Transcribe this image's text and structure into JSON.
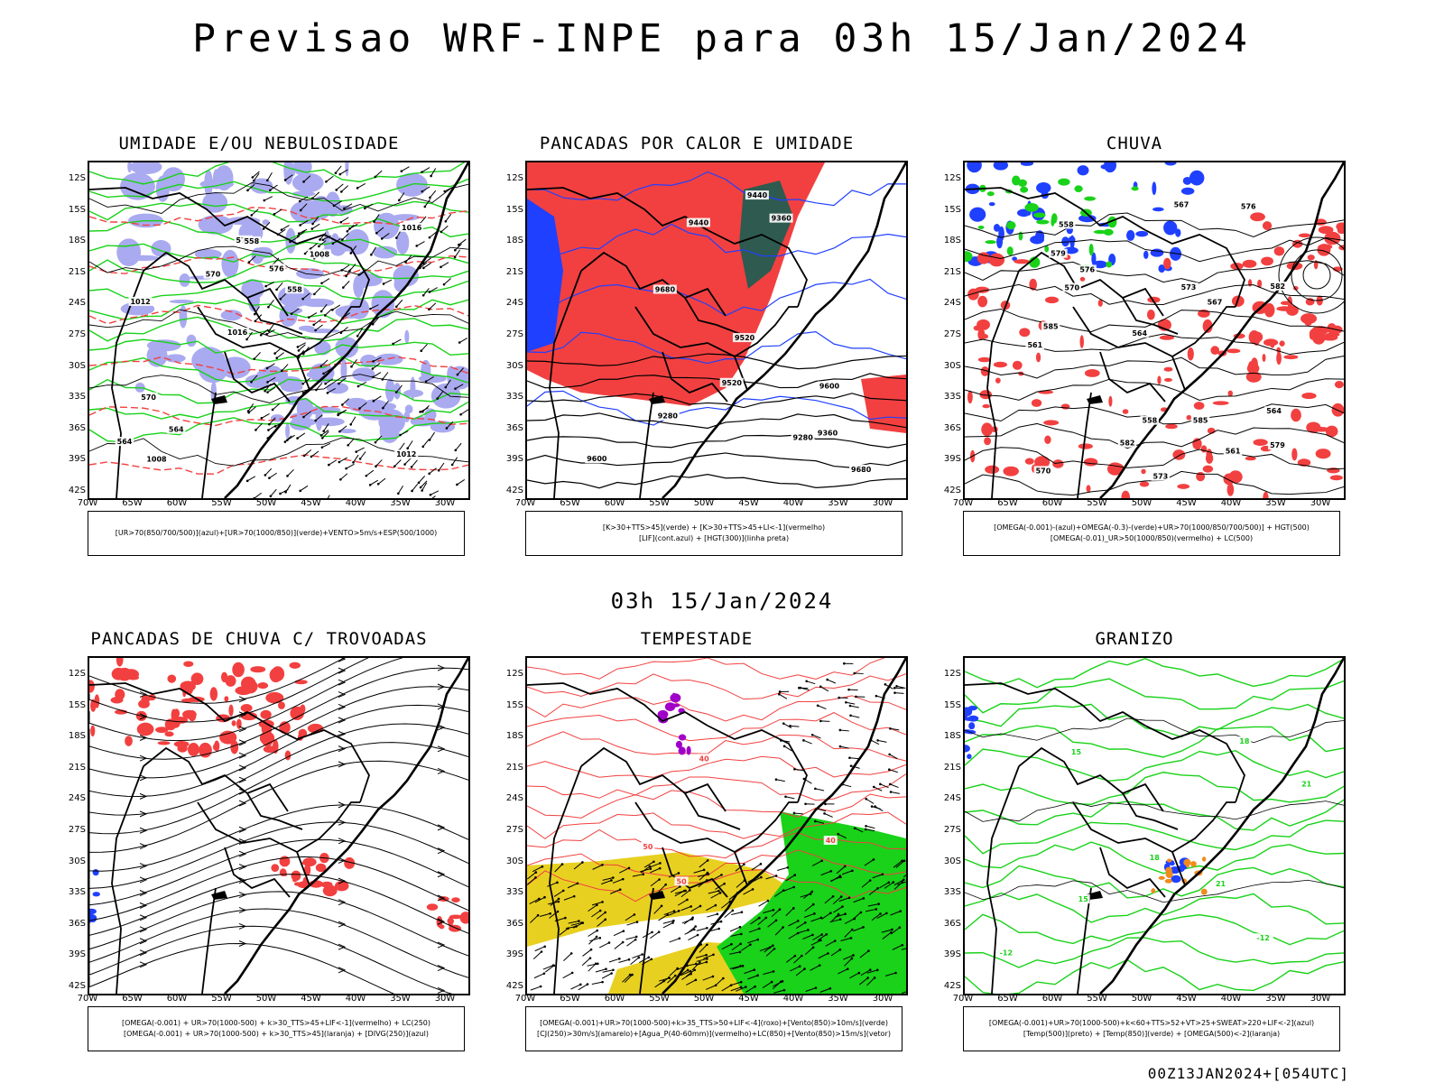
{
  "title": "Previsao WRF-INPE  para 03h 15/Jan/2024",
  "subtitle": "03h 15/Jan/2024",
  "footer": "00Z13JAN2024+[054UTC]",
  "axes": {
    "lat": [
      "12S",
      "15S",
      "18S",
      "21S",
      "24S",
      "27S",
      "30S",
      "33S",
      "36S",
      "39S",
      "42S"
    ],
    "lon": [
      "70W",
      "65W",
      "60W",
      "55W",
      "50W",
      "45W",
      "40W",
      "35W",
      "30W"
    ]
  },
  "colors": {
    "red": "#f24040",
    "green": "#19d219",
    "blue": "#2040ff",
    "lavender": "#aaaaf0",
    "yellow": "#e8d020",
    "darkgreen": "#2f5a50",
    "orange": "#f08c1e",
    "purple": "#a000c8"
  },
  "panels": [
    {
      "title": "UMIDADE E/OU NEBULOSIDADE",
      "legend": [
        "[UR>70(850/700/500)](azul)+[UR>70(1000/850)](verde)+VENTO>5m/s+ESP(500/1000)"
      ],
      "contours": [
        "1012",
        "1016",
        "1008",
        "576",
        "570",
        "564",
        "558"
      ]
    },
    {
      "title": "PANCADAS POR CALOR E UMIDADE",
      "legend": [
        "[K>30+TTS>45](verde) + [K>30+TTS>45+LI<-1](vermelho)",
        "[LIF](cont.azul) + [HGT(300)](linha preta)"
      ],
      "contours": [
        "9600",
        "9520",
        "9440",
        "9360",
        "9280",
        "9680"
      ]
    },
    {
      "title": "CHUVA",
      "legend": [
        "[OMEGA(-0.001)-(azul)+OMEGA(-0.3)-(verde)+UR>70(1000/850/700/500)] + HGT(500)",
        "[OMEGA(-0.01)_UR>50(1000/850)(vermelho) + LC(500)"
      ],
      "contours": [
        "585",
        "582",
        "579",
        "576",
        "573",
        "570",
        "567",
        "564",
        "561",
        "558"
      ]
    },
    {
      "title": "PANCADAS DE CHUVA C/ TROVOADAS",
      "legend": [
        "[OMEGA(-0.001) + UR>70(1000-500) + k>30_TTS>45+LIF<-1](vermelho) + LC(250)",
        "[OMEGA(-0.001) + UR>70(1000-500) + k>30_TTS>45](laranja) + [DIVG(250)](azul)"
      ],
      "contours": []
    },
    {
      "title": "TEMPESTADE",
      "legend": [
        "[OMEGA(-0.001)+UR>70(1000-500)+k>35_TTS>50+LIF<-4](roxo)+[Vento(850)>10m/s](verde)",
        "[CJ(250)>30m/s](amarelo)+[Agua_P(40-60mm)](vermelho)+LC(850)+[Vento(850)>15m/s](vetor)"
      ],
      "contours": [
        "50",
        "40"
      ]
    },
    {
      "title": "GRANIZO",
      "legend": [
        "[OMEGA(-0.001)+UR>70(1000-500)+k<60+TTS>52+VT>25+SWEAT>220+LIF<-2](azul)",
        "[Temp(500)](preto) + [Temp(850)](verde) + [OMEGA(500)<-2](laranja)"
      ],
      "contours": [
        "-12",
        "15",
        "21",
        "18"
      ]
    }
  ]
}
